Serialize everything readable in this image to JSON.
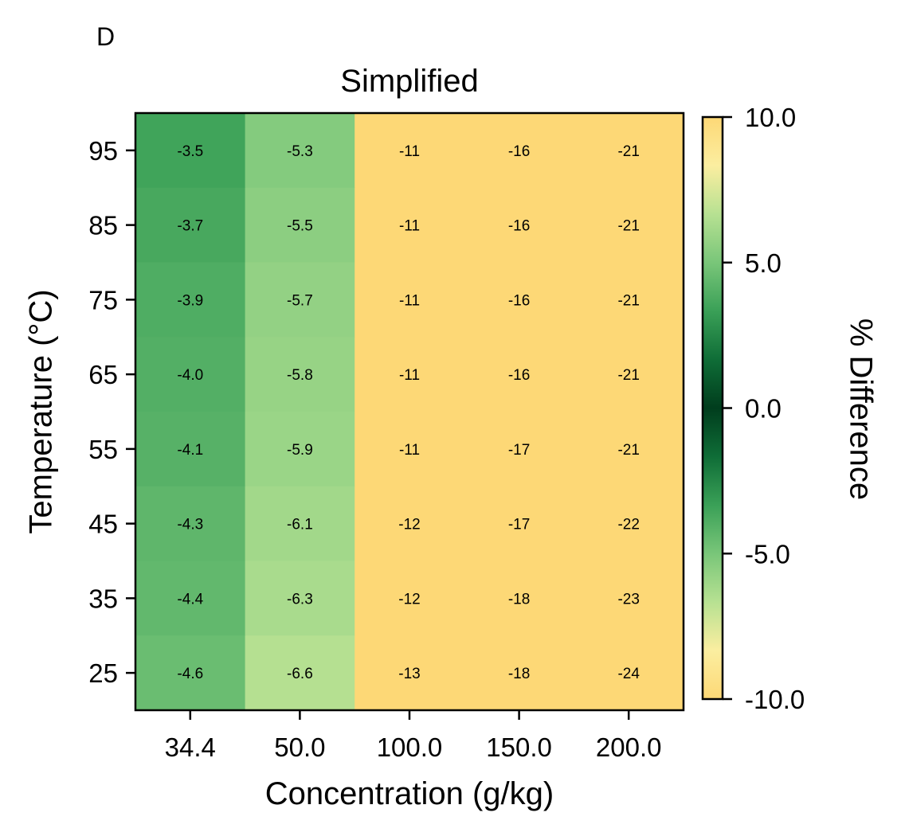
{
  "panel_letter": "D",
  "chart_data": {
    "type": "heatmap",
    "title": "Simplified",
    "xlabel": "Concentration (g/kg)",
    "ylabel": "Temperature (°C)",
    "x_categories": [
      "34.4",
      "50.0",
      "100.0",
      "150.0",
      "200.0"
    ],
    "y_categories": [
      "95",
      "85",
      "75",
      "65",
      "55",
      "45",
      "35",
      "25"
    ],
    "values": [
      [
        -3.5,
        -5.3,
        -11,
        -16,
        -21
      ],
      [
        -3.7,
        -5.5,
        -11,
        -16,
        -21
      ],
      [
        -3.9,
        -5.7,
        -11,
        -16,
        -21
      ],
      [
        -4.0,
        -5.8,
        -11,
        -16,
        -21
      ],
      [
        -4.1,
        -5.9,
        -11,
        -17,
        -21
      ],
      [
        -4.3,
        -6.1,
        -12,
        -17,
        -22
      ],
      [
        -4.4,
        -6.3,
        -12,
        -18,
        -23
      ],
      [
        -4.6,
        -6.6,
        -13,
        -18,
        -24
      ]
    ],
    "cell_labels": [
      [
        "-3.5",
        "-5.3",
        "-11",
        "-16",
        "-21"
      ],
      [
        "-3.7",
        "-5.5",
        "-11",
        "-16",
        "-21"
      ],
      [
        "-3.9",
        "-5.7",
        "-11",
        "-16",
        "-21"
      ],
      [
        "-4.0",
        "-5.8",
        "-11",
        "-16",
        "-21"
      ],
      [
        "-4.1",
        "-5.9",
        "-11",
        "-17",
        "-21"
      ],
      [
        "-4.3",
        "-6.1",
        "-12",
        "-17",
        "-22"
      ],
      [
        "-4.4",
        "-6.3",
        "-12",
        "-18",
        "-23"
      ],
      [
        "-4.6",
        "-6.6",
        "-13",
        "-18",
        "-24"
      ]
    ],
    "colorbar": {
      "label": "% Difference",
      "range": [
        -10.0,
        10.0
      ],
      "ticks": [
        10.0,
        5.0,
        0.0,
        -5.0,
        -10.0
      ],
      "tick_labels": [
        "10.0",
        "5.0",
        "0.0",
        "-5.0",
        "-10.0"
      ],
      "colors": [
        "#fdd876",
        "#fbeea0",
        "#b7e192",
        "#79c679",
        "#3aa057",
        "#0f6d37",
        "#003d1d",
        "#0f6d37",
        "#3aa057",
        "#79c679",
        "#b7e192",
        "#fbeea0",
        "#fdd876"
      ]
    }
  }
}
